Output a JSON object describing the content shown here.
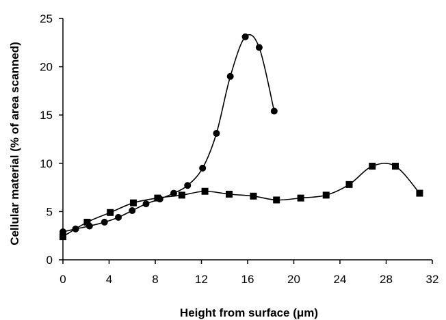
{
  "chart_data": {
    "type": "line",
    "title": "",
    "xlabel": "Height from surface (μm)",
    "ylabel": "Cellular material (% of area scanned)",
    "xlim": [
      0,
      32
    ],
    "ylim": [
      0,
      25
    ],
    "xticks": [
      "0",
      "4",
      "8",
      "12",
      "16",
      "20",
      "24",
      "28",
      "32"
    ],
    "yticks": [
      "0",
      "5",
      "10",
      "15",
      "20",
      "25"
    ],
    "grid": false,
    "legend": "none",
    "series": [
      {
        "marker": "circle",
        "color": "#000000",
        "points": [
          [
            0,
            2.9
          ],
          [
            1.1,
            3.2
          ],
          [
            2.3,
            3.5
          ],
          [
            3.6,
            3.9
          ],
          [
            4.8,
            4.4
          ],
          [
            6.0,
            5.1
          ],
          [
            7.2,
            5.8
          ],
          [
            8.4,
            6.3
          ],
          [
            9.6,
            6.9
          ],
          [
            10.8,
            7.7
          ],
          [
            12.1,
            9.5
          ],
          [
            13.3,
            13.1
          ],
          [
            14.5,
            19.0
          ],
          [
            15.8,
            23.1
          ],
          [
            17.0,
            22.0
          ],
          [
            18.3,
            15.4
          ]
        ]
      },
      {
        "marker": "square",
        "color": "#000000",
        "points": [
          [
            0,
            2.4
          ],
          [
            2.1,
            3.9
          ],
          [
            4.1,
            4.9
          ],
          [
            6.1,
            5.9
          ],
          [
            8.2,
            6.4
          ],
          [
            10.3,
            6.7
          ],
          [
            12.3,
            7.1
          ],
          [
            14.4,
            6.8
          ],
          [
            16.5,
            6.6
          ],
          [
            18.5,
            6.2
          ],
          [
            20.6,
            6.4
          ],
          [
            22.8,
            6.7
          ],
          [
            24.8,
            7.8
          ],
          [
            26.8,
            9.7
          ],
          [
            28.8,
            9.7
          ],
          [
            30.9,
            6.9
          ]
        ]
      }
    ]
  }
}
